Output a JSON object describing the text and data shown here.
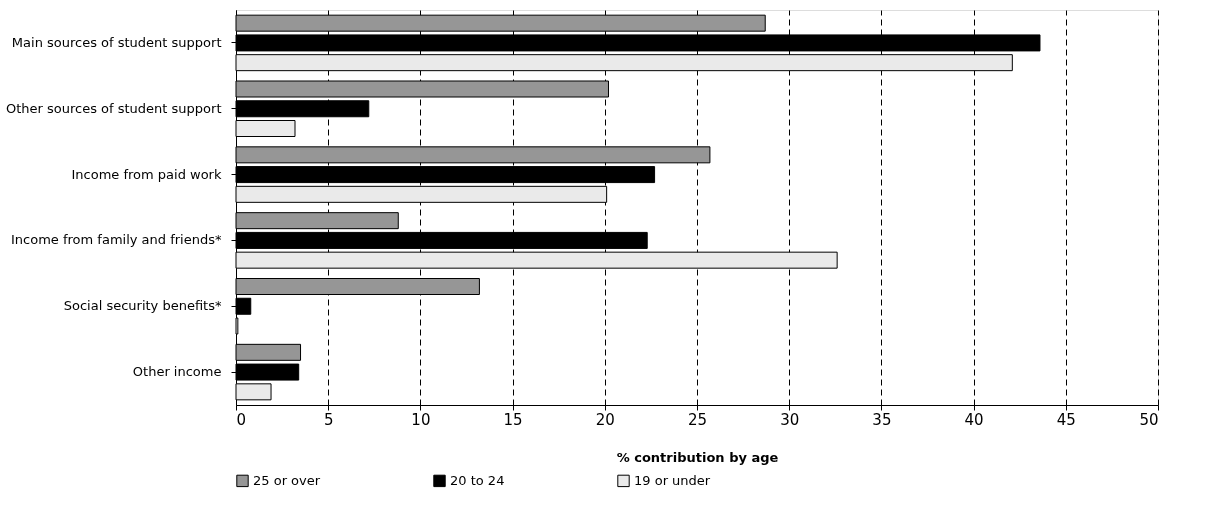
{
  "chart_data": {
    "type": "bar",
    "orientation": "horizontal",
    "xlabel": "% contribution by age",
    "categories": [
      "Main sources of student support",
      "Other sources of student support",
      "Income from paid work",
      "Income from family and friends*",
      "Social security benefits*",
      "Other income"
    ],
    "series": [
      {
        "name": "25 or over",
        "color": "#969696",
        "values": [
          28.7,
          20.2,
          25.7,
          8.8,
          13.2,
          3.5
        ]
      },
      {
        "name": "20 to 24",
        "color": "#000000",
        "values": [
          43.6,
          7.2,
          22.7,
          22.3,
          0.8,
          3.4
        ]
      },
      {
        "name": "19 or under",
        "color": "#eaeaea",
        "values": [
          42.1,
          3.2,
          20.1,
          32.6,
          0.1,
          1.9
        ]
      }
    ],
    "xlim": [
      0,
      50
    ],
    "xticks": [
      0,
      5,
      10,
      15,
      20,
      25,
      30,
      35,
      40,
      45,
      50
    ],
    "grid": "x",
    "legend": "bottom"
  }
}
